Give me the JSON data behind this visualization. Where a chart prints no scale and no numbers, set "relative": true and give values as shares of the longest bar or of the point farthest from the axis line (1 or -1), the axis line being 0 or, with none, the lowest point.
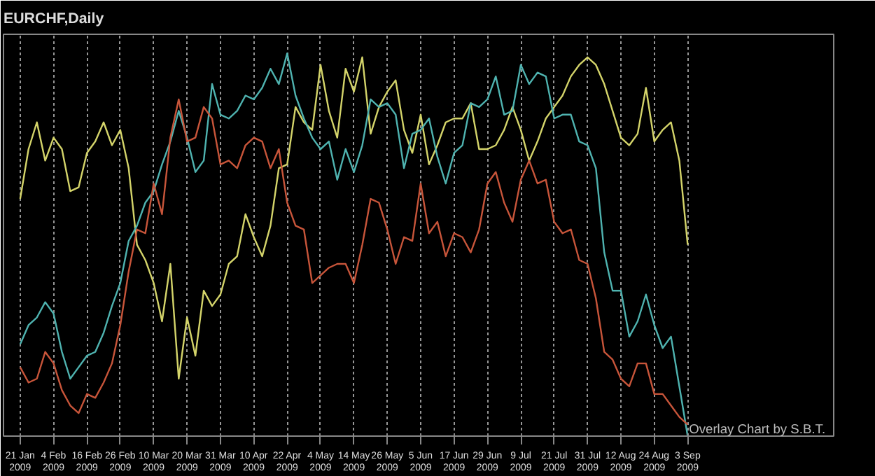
{
  "chart_data": {
    "type": "line",
    "title": "EURCHF,Daily",
    "relative": true,
    "grid": "x",
    "line_style": "solid",
    "marker": "none",
    "categories": [
      "21 Jan 2009",
      null,
      null,
      null,
      "4 Feb 2009",
      null,
      null,
      null,
      "16 Feb 2009",
      null,
      null,
      null,
      "26 Feb 2009",
      null,
      null,
      null,
      "10 Mar 2009",
      null,
      null,
      null,
      "20 Mar 2009",
      null,
      null,
      null,
      "31 Mar 2009",
      null,
      null,
      null,
      "10 Apr 2009",
      null,
      null,
      null,
      "22 Apr 2009",
      null,
      null,
      null,
      "4 May 2009",
      null,
      null,
      null,
      "14 May 2009",
      null,
      null,
      null,
      "26 May 2009",
      null,
      null,
      null,
      "5 Jun 2009",
      null,
      null,
      null,
      "17 Jun 2009",
      null,
      null,
      null,
      "29 Jun 2009",
      null,
      null,
      null,
      "9 Jul 2009",
      null,
      null,
      null,
      "21 Jul 2009",
      null,
      null,
      null,
      "31 Jul 2009",
      null,
      null,
      null,
      "12 Aug 2009",
      null,
      null,
      null,
      "24 Aug 2009",
      null,
      null,
      null,
      "3 Sep 2009",
      null,
      null,
      null,
      null,
      null,
      null,
      null,
      null,
      null,
      null,
      null,
      null,
      null,
      null,
      null,
      null,
      null
    ],
    "annotations": [
      "Overlay Chart by S.B.T."
    ],
    "series": [
      {
        "color": "#d4d46a",
        "values": [
          0.62,
          0.75,
          0.82,
          0.72,
          0.78,
          0.75,
          0.64,
          0.65,
          0.74,
          0.77,
          0.82,
          0.76,
          0.8,
          0.7,
          0.5,
          0.46,
          0.4,
          0.3,
          0.45,
          0.15,
          0.31,
          0.21,
          0.38,
          0.34,
          0.37,
          0.45,
          0.47,
          0.58,
          0.52,
          0.47,
          0.55,
          0.7,
          0.71,
          0.86,
          0.82,
          0.8,
          0.97,
          0.85,
          0.78,
          0.96,
          0.9,
          0.99,
          0.79,
          0.86,
          0.9,
          0.93,
          0.8,
          0.74,
          0.84,
          0.71,
          0.76,
          0.82,
          0.83,
          0.83,
          0.87,
          0.75,
          0.75,
          0.76,
          0.8,
          0.86,
          0.8,
          0.72,
          0.77,
          0.83,
          0.86,
          0.89,
          0.94,
          0.97,
          0.99,
          0.97,
          0.92,
          0.85,
          0.78,
          0.76,
          0.79,
          0.91,
          0.77,
          0.8,
          0.82,
          0.72,
          0.5,
          null,
          null,
          null,
          null,
          null,
          null,
          null,
          null,
          null,
          null,
          null,
          null,
          null,
          null,
          null,
          null,
          null
        ]
      },
      {
        "color": "#4fb3b0",
        "values": [
          0.24,
          0.29,
          0.31,
          0.35,
          0.32,
          0.22,
          0.15,
          0.18,
          0.21,
          0.22,
          0.27,
          0.34,
          0.4,
          0.51,
          0.55,
          0.61,
          0.64,
          0.71,
          0.77,
          0.85,
          0.78,
          0.69,
          0.72,
          0.92,
          0.84,
          0.83,
          0.85,
          0.89,
          0.88,
          0.91,
          0.96,
          0.92,
          1.0,
          0.89,
          0.83,
          0.78,
          0.75,
          0.77,
          0.67,
          0.75,
          0.69,
          0.76,
          0.88,
          0.86,
          0.87,
          0.84,
          0.7,
          0.79,
          0.8,
          0.83,
          0.73,
          0.66,
          0.74,
          0.76,
          0.87,
          0.86,
          0.88,
          0.94,
          0.84,
          0.85,
          0.97,
          0.92,
          0.95,
          0.94,
          0.83,
          0.84,
          0.84,
          0.77,
          0.76,
          0.7,
          0.48,
          0.38,
          0.38,
          0.26,
          0.3,
          0.37,
          0.29,
          0.23,
          0.26,
          0.13,
          0,
          null,
          null,
          null,
          null,
          null,
          null,
          null,
          null,
          null,
          null,
          null,
          null,
          null,
          null,
          null,
          null,
          null
        ]
      },
      {
        "color": "#c8553a",
        "values": [
          0.18,
          0.14,
          0.15,
          0.22,
          0.19,
          0.12,
          0.08,
          0.06,
          0.11,
          0.1,
          0.14,
          0.19,
          0.29,
          0.43,
          0.54,
          0.53,
          0.66,
          0.58,
          0.78,
          0.88,
          0.77,
          0.78,
          0.86,
          0.83,
          0.71,
          0.72,
          0.7,
          0.76,
          0.78,
          0.77,
          0.7,
          0.75,
          0.61,
          0.55,
          0.54,
          0.4,
          0.42,
          0.44,
          0.45,
          0.45,
          0.4,
          0.5,
          0.62,
          0.61,
          0.54,
          0.45,
          0.52,
          0.51,
          0.66,
          0.53,
          0.56,
          0.47,
          0.53,
          0.52,
          0.48,
          0.54,
          0.66,
          0.69,
          0.61,
          0.56,
          0.67,
          0.72,
          0.66,
          0.67,
          0.56,
          0.53,
          0.54,
          0.46,
          0.45,
          0.36,
          0.22,
          0.2,
          0.15,
          0.13,
          0.19,
          0.19,
          0.11,
          0.11,
          0.08,
          0.05,
          0.03,
          null,
          null,
          null,
          null,
          null,
          null,
          null,
          null,
          null,
          null,
          null,
          null,
          null,
          null,
          null,
          null,
          null
        ]
      }
    ]
  }
}
